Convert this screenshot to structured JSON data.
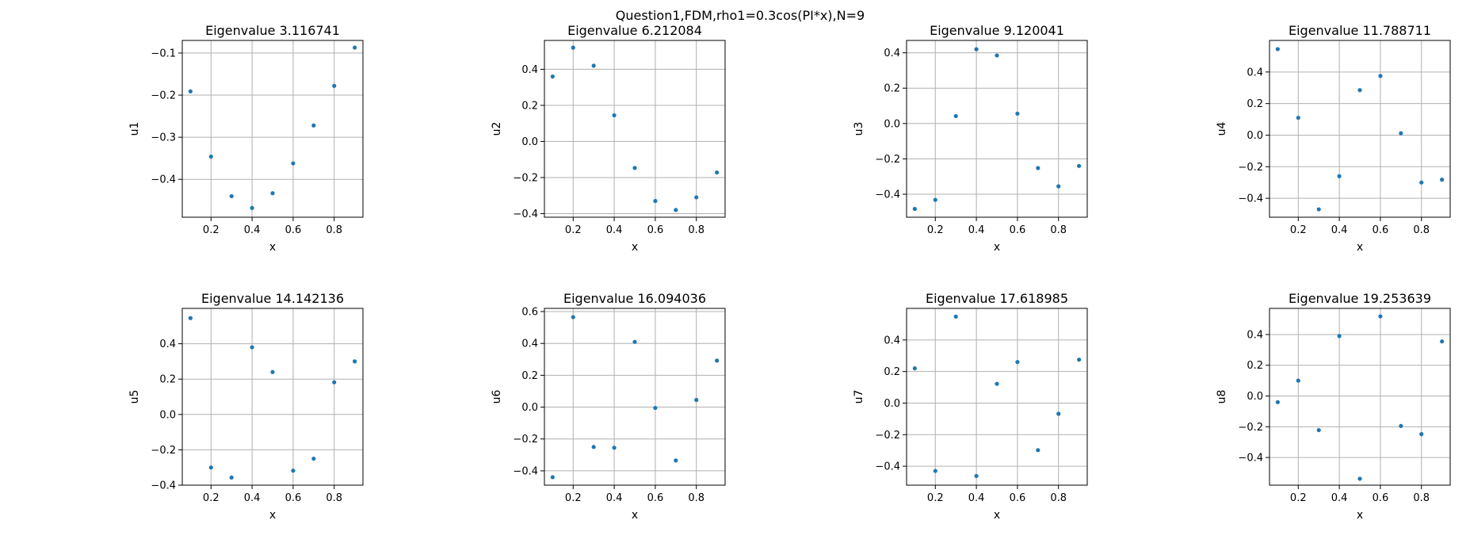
{
  "figure": {
    "suptitle": "Question1,FDM,rho1=0.3cos(PI*x),N=9",
    "point_color": "#1f77b4",
    "grid_color": "#b0b0b0"
  },
  "chart_data": [
    {
      "type": "scatter",
      "title": "Eigenvalue 3.116741",
      "xlabel": "x",
      "ylabel": "u1",
      "x": [
        0.1,
        0.2,
        0.3,
        0.4,
        0.5,
        0.6,
        0.7,
        0.8,
        0.9
      ],
      "y": [
        -0.191,
        -0.346,
        -0.44,
        -0.468,
        -0.433,
        -0.362,
        -0.272,
        -0.178,
        -0.087
      ],
      "xlim": [
        0.06,
        0.94
      ],
      "ylim": [
        -0.49,
        -0.07
      ],
      "xticks": [
        0.2,
        0.4,
        0.6,
        0.8
      ],
      "xtick_labels": [
        "0.2",
        "0.4",
        "0.6",
        "0.8"
      ],
      "yticks": [
        -0.4,
        -0.3,
        -0.2,
        -0.1
      ],
      "ytick_labels": [
        "−0.4",
        "−0.3",
        "−0.2",
        "−0.1"
      ],
      "grid": true
    },
    {
      "type": "scatter",
      "title": "Eigenvalue 6.212084",
      "xlabel": "x",
      "ylabel": "u2",
      "x": [
        0.1,
        0.2,
        0.3,
        0.4,
        0.5,
        0.6,
        0.7,
        0.8,
        0.9
      ],
      "y": [
        0.36,
        0.52,
        0.42,
        0.145,
        -0.147,
        -0.33,
        -0.38,
        -0.31,
        -0.172
      ],
      "xlim": [
        0.06,
        0.94
      ],
      "ylim": [
        -0.42,
        0.56
      ],
      "xticks": [
        0.2,
        0.4,
        0.6,
        0.8
      ],
      "xtick_labels": [
        "0.2",
        "0.4",
        "0.6",
        "0.8"
      ],
      "yticks": [
        -0.4,
        -0.2,
        0.0,
        0.2,
        0.4
      ],
      "ytick_labels": [
        "−0.4",
        "−0.2",
        "0.0",
        "0.2",
        "0.4"
      ],
      "grid": true
    },
    {
      "type": "scatter",
      "title": "Eigenvalue 9.120041",
      "xlabel": "x",
      "ylabel": "u3",
      "x": [
        0.1,
        0.2,
        0.3,
        0.4,
        0.5,
        0.6,
        0.7,
        0.8,
        0.9
      ],
      "y": [
        -0.483,
        -0.432,
        0.042,
        0.42,
        0.385,
        0.056,
        -0.252,
        -0.355,
        -0.24
      ],
      "xlim": [
        0.06,
        0.94
      ],
      "ylim": [
        -0.53,
        0.47
      ],
      "xticks": [
        0.2,
        0.4,
        0.6,
        0.8
      ],
      "xtick_labels": [
        "0.2",
        "0.4",
        "0.6",
        "0.8"
      ],
      "yticks": [
        -0.4,
        -0.2,
        0.0,
        0.2,
        0.4
      ],
      "ytick_labels": [
        "−0.4",
        "−0.2",
        "0.0",
        "0.2",
        "0.4"
      ],
      "grid": true
    },
    {
      "type": "scatter",
      "title": "Eigenvalue 11.788711",
      "xlabel": "x",
      "ylabel": "u4",
      "x": [
        0.1,
        0.2,
        0.3,
        0.4,
        0.5,
        0.6,
        0.7,
        0.8,
        0.9
      ],
      "y": [
        0.545,
        0.11,
        -0.47,
        -0.26,
        0.285,
        0.375,
        0.012,
        -0.3,
        -0.282
      ],
      "xlim": [
        0.06,
        0.94
      ],
      "ylim": [
        -0.52,
        0.6
      ],
      "xticks": [
        0.2,
        0.4,
        0.6,
        0.8
      ],
      "xtick_labels": [
        "0.2",
        "0.4",
        "0.6",
        "0.8"
      ],
      "yticks": [
        -0.4,
        -0.2,
        0.0,
        0.2,
        0.4
      ],
      "ytick_labels": [
        "−0.4",
        "−0.2",
        "0.0",
        "0.2",
        "0.4"
      ],
      "grid": true
    },
    {
      "type": "scatter",
      "title": "Eigenvalue 14.142136",
      "xlabel": "x",
      "ylabel": "u5",
      "x": [
        0.1,
        0.2,
        0.3,
        0.4,
        0.5,
        0.6,
        0.7,
        0.8,
        0.9
      ],
      "y": [
        0.545,
        -0.3,
        -0.357,
        0.38,
        0.24,
        -0.318,
        -0.25,
        0.182,
        0.3
      ],
      "xlim": [
        0.06,
        0.94
      ],
      "ylim": [
        -0.4,
        0.6
      ],
      "xticks": [
        0.2,
        0.4,
        0.6,
        0.8
      ],
      "xtick_labels": [
        "0.2",
        "0.4",
        "0.6",
        "0.8"
      ],
      "yticks": [
        -0.4,
        -0.2,
        0.0,
        0.2,
        0.4
      ],
      "ytick_labels": [
        "−0.4",
        "−0.2",
        "0.0",
        "0.2",
        "0.4"
      ],
      "grid": true
    },
    {
      "type": "scatter",
      "title": "Eigenvalue 16.094036",
      "xlabel": "x",
      "ylabel": "u6",
      "x": [
        0.1,
        0.2,
        0.3,
        0.4,
        0.5,
        0.6,
        0.7,
        0.8,
        0.9
      ],
      "y": [
        -0.44,
        0.565,
        -0.25,
        -0.255,
        0.41,
        -0.005,
        -0.335,
        0.045,
        0.292
      ],
      "xlim": [
        0.06,
        0.94
      ],
      "ylim": [
        -0.49,
        0.62
      ],
      "xticks": [
        0.2,
        0.4,
        0.6,
        0.8
      ],
      "xtick_labels": [
        "0.2",
        "0.4",
        "0.6",
        "0.8"
      ],
      "yticks": [
        -0.4,
        -0.2,
        0.0,
        0.2,
        0.4,
        0.6
      ],
      "ytick_labels": [
        "−0.4",
        "−0.2",
        "0.0",
        "0.2",
        "0.4",
        "0.6"
      ],
      "grid": true
    },
    {
      "type": "scatter",
      "title": "Eigenvalue 17.618985",
      "xlabel": "x",
      "ylabel": "u7",
      "x": [
        0.1,
        0.2,
        0.3,
        0.4,
        0.5,
        0.6,
        0.7,
        0.8,
        0.9
      ],
      "y": [
        0.22,
        -0.43,
        0.548,
        -0.462,
        0.122,
        0.26,
        -0.298,
        -0.068,
        0.275
      ],
      "xlim": [
        0.06,
        0.94
      ],
      "ylim": [
        -0.52,
        0.6
      ],
      "xticks": [
        0.2,
        0.4,
        0.6,
        0.8
      ],
      "xtick_labels": [
        "0.2",
        "0.4",
        "0.6",
        "0.8"
      ],
      "yticks": [
        -0.4,
        -0.2,
        0.0,
        0.2,
        0.4
      ],
      "ytick_labels": [
        "−0.4",
        "−0.2",
        "0.0",
        "0.2",
        "0.4"
      ],
      "grid": true
    },
    {
      "type": "scatter",
      "title": "Eigenvalue 19.253639",
      "xlabel": "x",
      "ylabel": "u8",
      "x": [
        0.1,
        0.2,
        0.3,
        0.4,
        0.5,
        0.6,
        0.7,
        0.8,
        0.9
      ],
      "y": [
        -0.04,
        0.1,
        -0.222,
        0.39,
        -0.538,
        0.518,
        -0.195,
        -0.248,
        0.355
      ],
      "xlim": [
        0.06,
        0.94
      ],
      "ylim": [
        -0.58,
        0.57
      ],
      "xticks": [
        0.2,
        0.4,
        0.6,
        0.8
      ],
      "xtick_labels": [
        "0.2",
        "0.4",
        "0.6",
        "0.8"
      ],
      "yticks": [
        -0.4,
        -0.2,
        0.0,
        0.2,
        0.4
      ],
      "ytick_labels": [
        "−0.4",
        "−0.2",
        "0.0",
        "0.2",
        "0.4"
      ],
      "grid": true
    }
  ]
}
